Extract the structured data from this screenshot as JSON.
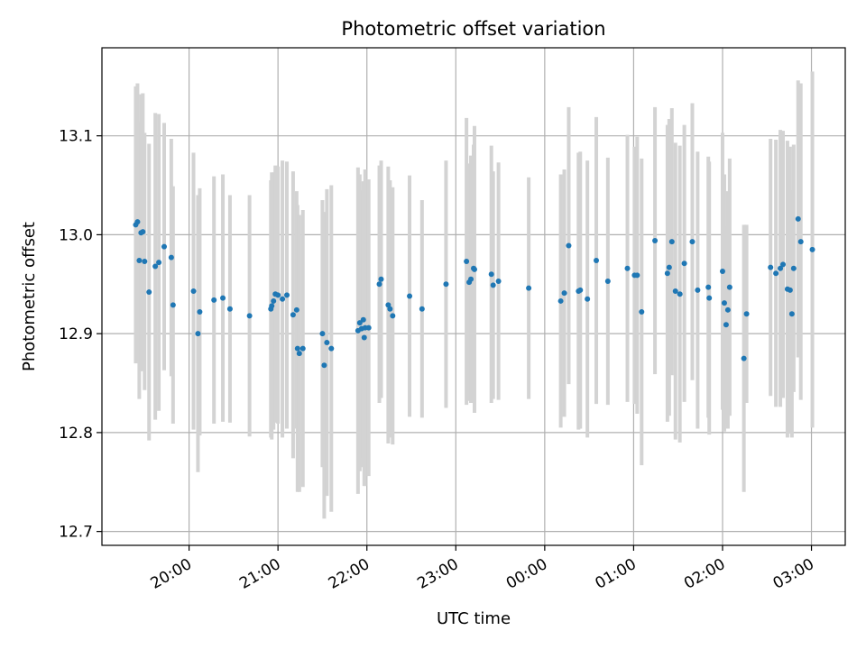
{
  "chart_data": {
    "type": "scatter",
    "title": "Photometric offset variation",
    "xlabel": "UTC time",
    "ylabel": "Photometric offset",
    "x_tick_labels": [
      "20:00",
      "21:00",
      "22:00",
      "23:00",
      "00:00",
      "01:00",
      "02:00",
      "03:00"
    ],
    "y_tick_labels": [
      "12.7",
      "12.8",
      "12.9",
      "13.0",
      "13.1"
    ],
    "y_ticks": [
      12.7,
      12.8,
      12.9,
      13.0,
      13.1
    ],
    "xlim": [
      19.02,
      27.38
    ],
    "ylim": [
      12.686,
      13.189
    ],
    "grid": true,
    "colors": {
      "marker": "#1f77b4",
      "errorbar": "#d3d3d3",
      "grid": "#b0b0b0"
    },
    "x_unit": "decimal hours UTC (values above 24 are after midnight)",
    "points": [
      [
        19.4,
        13.01,
        0.14
      ],
      [
        19.42,
        13.013,
        0.14
      ],
      [
        19.44,
        12.974,
        0.14
      ],
      [
        19.46,
        13.002,
        0.14
      ],
      [
        19.48,
        13.003,
        0.14
      ],
      [
        19.5,
        12.973,
        0.13
      ],
      [
        19.55,
        12.942,
        0.15
      ],
      [
        19.62,
        12.968,
        0.155
      ],
      [
        19.66,
        12.972,
        0.15
      ],
      [
        19.72,
        12.988,
        0.125
      ],
      [
        19.8,
        12.977,
        0.12
      ],
      [
        19.82,
        12.929,
        0.12
      ],
      [
        20.05,
        12.943,
        0.14
      ],
      [
        20.1,
        12.9,
        0.14
      ],
      [
        20.12,
        12.922,
        0.125
      ],
      [
        20.28,
        12.934,
        0.125
      ],
      [
        20.38,
        12.936,
        0.125
      ],
      [
        20.46,
        12.925,
        0.115
      ],
      [
        20.68,
        12.918,
        0.122
      ],
      [
        20.92,
        12.925,
        0.13
      ],
      [
        20.93,
        12.928,
        0.135
      ],
      [
        20.95,
        12.933,
        0.13
      ],
      [
        20.97,
        12.94,
        0.13
      ],
      [
        21.0,
        12.939,
        0.13
      ],
      [
        21.05,
        12.935,
        0.14
      ],
      [
        21.1,
        12.939,
        0.135
      ],
      [
        21.17,
        12.919,
        0.145
      ],
      [
        21.21,
        12.924,
        0.12
      ],
      [
        21.22,
        12.885,
        0.145
      ],
      [
        21.24,
        12.88,
        0.14
      ],
      [
        21.28,
        12.885,
        0.14
      ],
      [
        21.5,
        12.9,
        0.135
      ],
      [
        21.52,
        12.868,
        0.155
      ],
      [
        21.55,
        12.891,
        0.155
      ],
      [
        21.6,
        12.885,
        0.165
      ],
      [
        21.9,
        12.903,
        0.165
      ],
      [
        21.92,
        12.911,
        0.15
      ],
      [
        21.94,
        12.905,
        0.14
      ],
      [
        21.96,
        12.914,
        0.14
      ],
      [
        21.97,
        12.896,
        0.15
      ],
      [
        21.98,
        12.906,
        0.16
      ],
      [
        22.02,
        12.906,
        0.15
      ],
      [
        22.14,
        12.95,
        0.12
      ],
      [
        22.16,
        12.955,
        0.12
      ],
      [
        22.24,
        12.929,
        0.14
      ],
      [
        22.26,
        12.925,
        0.13
      ],
      [
        22.29,
        12.918,
        0.13
      ],
      [
        22.48,
        12.938,
        0.122
      ],
      [
        22.62,
        12.925,
        0.11
      ],
      [
        22.89,
        12.95,
        0.125
      ],
      [
        23.12,
        12.973,
        0.145
      ],
      [
        23.15,
        12.952,
        0.12
      ],
      [
        23.17,
        12.955,
        0.125
      ],
      [
        23.2,
        12.966,
        0.125
      ],
      [
        23.21,
        12.965,
        0.145
      ],
      [
        23.4,
        12.96,
        0.13
      ],
      [
        23.42,
        12.949,
        0.115
      ],
      [
        23.48,
        12.953,
        0.12
      ],
      [
        23.82,
        12.946,
        0.112
      ],
      [
        24.18,
        12.933,
        0.128
      ],
      [
        24.22,
        12.941,
        0.125
      ],
      [
        24.27,
        12.989,
        0.14
      ],
      [
        24.38,
        12.943,
        0.14
      ],
      [
        24.4,
        12.944,
        0.14
      ],
      [
        24.48,
        12.935,
        0.14
      ],
      [
        24.58,
        12.974,
        0.145
      ],
      [
        24.71,
        12.953,
        0.125
      ],
      [
        24.93,
        12.966,
        0.135
      ],
      [
        25.01,
        12.959,
        0.13
      ],
      [
        25.04,
        12.959,
        0.14
      ],
      [
        25.09,
        12.922,
        0.155
      ],
      [
        25.24,
        12.994,
        0.135
      ],
      [
        25.38,
        12.961,
        0.15
      ],
      [
        25.4,
        12.967,
        0.15
      ],
      [
        25.43,
        12.993,
        0.135
      ],
      [
        25.47,
        12.943,
        0.15
      ],
      [
        25.52,
        12.94,
        0.15
      ],
      [
        25.57,
        12.971,
        0.14
      ],
      [
        25.66,
        12.993,
        0.14
      ],
      [
        25.72,
        12.944,
        0.14
      ],
      [
        25.84,
        12.947,
        0.132
      ],
      [
        25.85,
        12.936,
        0.138
      ],
      [
        26.0,
        12.963,
        0.14
      ],
      [
        26.02,
        12.931,
        0.13
      ],
      [
        26.04,
        12.909,
        0.1
      ],
      [
        26.06,
        12.924,
        0.12
      ],
      [
        26.08,
        12.947,
        0.13
      ],
      [
        26.24,
        12.875,
        0.135
      ],
      [
        26.27,
        12.92,
        0.09
      ],
      [
        26.54,
        12.967,
        0.13
      ],
      [
        26.6,
        12.961,
        0.135
      ],
      [
        26.65,
        12.966,
        0.14
      ],
      [
        26.68,
        12.97,
        0.135
      ],
      [
        26.73,
        12.945,
        0.15
      ],
      [
        26.76,
        12.944,
        0.145
      ],
      [
        26.78,
        12.92,
        0.125
      ],
      [
        26.8,
        12.966,
        0.125
      ],
      [
        26.85,
        13.016,
        0.14
      ],
      [
        26.88,
        12.993,
        0.16
      ],
      [
        27.01,
        12.985,
        0.18
      ]
    ]
  }
}
